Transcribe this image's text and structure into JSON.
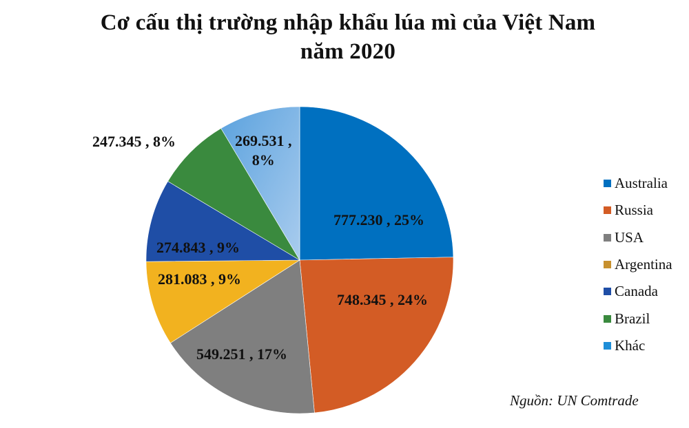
{
  "title": {
    "line1": "Cơ cấu thị trường nhập khẩu lúa mì của Việt Nam",
    "line2": "năm 2020"
  },
  "source": "Nguồn: UN Comtrade",
  "chart_data": {
    "type": "pie",
    "title": "Cơ cấu thị trường nhập khẩu lúa mì của Việt Nam năm 2020",
    "start_angle_deg": 0,
    "direction": "clockwise",
    "legend_position": "right",
    "slices": [
      {
        "name": "Australia",
        "value": 777.23,
        "value_label": "777.230",
        "percent": 25,
        "color": "#0070C0"
      },
      {
        "name": "Russia",
        "value": 748.345,
        "value_label": "748.345",
        "percent": 24,
        "color": "#D35C25"
      },
      {
        "name": "USA",
        "value": 549.251,
        "value_label": "549.251",
        "percent": 17,
        "color": "#7F7F7F"
      },
      {
        "name": "Argentina",
        "value": 281.083,
        "value_label": "281.083",
        "percent": 9,
        "color": "#F2B21F"
      },
      {
        "name": "Canada",
        "value": 274.843,
        "value_label": "274.843",
        "percent": 9,
        "color": "#1F4EA6"
      },
      {
        "name": "Brazil",
        "value": 247.345,
        "value_label": "247.345",
        "percent": 8,
        "color": "#3A8A3E"
      },
      {
        "name": "Khác",
        "value": 269.531,
        "value_label": "269.531",
        "percent": 8,
        "color": "#7FB4E4"
      }
    ],
    "data_labels": [
      {
        "text": "777.230 , 25%"
      },
      {
        "text": "748.345 , 24%"
      },
      {
        "text": "549.251 , 17%"
      },
      {
        "text": "281.083 , 9%"
      },
      {
        "text": "274.843 , 9%"
      },
      {
        "text": "247.345 , 8%"
      },
      {
        "text": "269.531 ,\n8%"
      }
    ]
  },
  "legend": [
    {
      "label": "Australia",
      "color": "#0070C0"
    },
    {
      "label": "Russia",
      "color": "#D35C25"
    },
    {
      "label": "USA",
      "color": "#7F7F7F"
    },
    {
      "label": "Argentina",
      "color": "#C8912E"
    },
    {
      "label": "Canada",
      "color": "#1F4EA6"
    },
    {
      "label": "Brazil",
      "color": "#3A8A3E"
    },
    {
      "label": "Khác",
      "color": "#1E8ED8"
    }
  ]
}
